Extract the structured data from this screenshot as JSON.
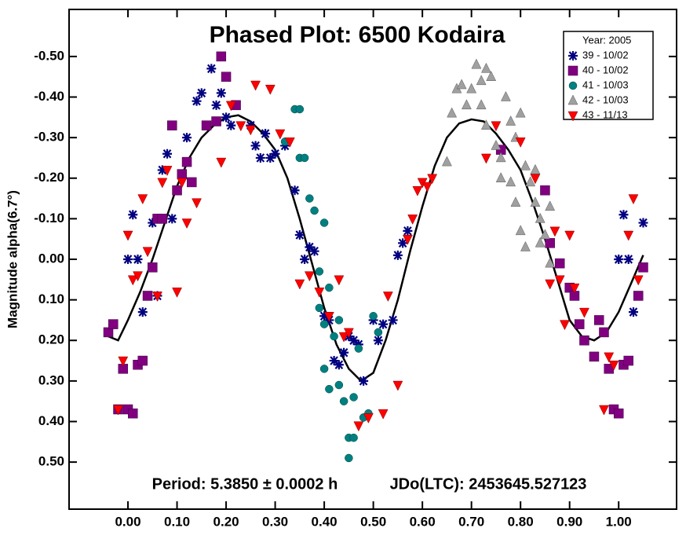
{
  "chart_data": {
    "type": "scatter",
    "title": "Phased Plot: 6500 Kodaira",
    "y_label": "Magnitude alpha(6.7°)",
    "annotations": [
      "Period: 5.3850 ± 0.0002 h",
      "JDo(LTC): 2453645.527123"
    ],
    "legend_title": "Year: 2005",
    "legend": "upper right",
    "y_inverted": true,
    "xlim": [
      -0.12,
      1.118
    ],
    "ylim": [
      -0.616,
      0.616
    ],
    "xticks": [
      {
        "value": 0,
        "label": "0.00"
      },
      {
        "value": 0.1,
        "label": "0.10"
      },
      {
        "value": 0.2,
        "label": "0.20"
      },
      {
        "value": 0.3,
        "label": "0.30"
      },
      {
        "value": 0.4,
        "label": "0.40"
      },
      {
        "value": 0.5,
        "label": "0.50"
      },
      {
        "value": 0.6,
        "label": "0.60"
      },
      {
        "value": 0.7,
        "label": "0.70"
      },
      {
        "value": 0.8,
        "label": "0.80"
      },
      {
        "value": 0.9,
        "label": "0.90"
      },
      {
        "value": 1,
        "label": "1.00"
      }
    ],
    "yticks": [
      {
        "value": -0.5,
        "label": "-0.50"
      },
      {
        "value": -0.4,
        "label": "-0.40"
      },
      {
        "value": -0.3,
        "label": "-0.30"
      },
      {
        "value": -0.2,
        "label": "-0.20"
      },
      {
        "value": -0.1,
        "label": "-0.10"
      },
      {
        "value": 0,
        "label": "0.00"
      },
      {
        "value": 0.1,
        "label": "0.10"
      },
      {
        "value": 0.2,
        "label": "0.20"
      },
      {
        "value": 0.3,
        "label": "0.30"
      },
      {
        "value": 0.4,
        "label": "0.40"
      },
      {
        "value": 0.5,
        "label": "0.50"
      }
    ],
    "series": [
      {
        "name": "39 - 10/02",
        "color": "#000080",
        "marker": "asterisk",
        "x": [
          0.0,
          0.01,
          0.02,
          0.03,
          0.05,
          0.06,
          0.07,
          0.08,
          0.09,
          0.12,
          0.14,
          0.15,
          0.17,
          0.18,
          0.19,
          0.2,
          0.21,
          0.25,
          0.26,
          0.27,
          0.28,
          0.29,
          0.3,
          0.32,
          0.34,
          0.35,
          0.36,
          0.37,
          0.38,
          0.4,
          0.41,
          0.42,
          0.43,
          0.44,
          0.45,
          0.46,
          0.47,
          0.48,
          0.5,
          0.51,
          0.52,
          0.54,
          0.55,
          0.56,
          0.57,
          1.0,
          1.01,
          1.02,
          1.03,
          1.05
        ],
        "values": [
          0.0,
          -0.11,
          0.0,
          0.13,
          -0.09,
          0.09,
          -0.22,
          -0.26,
          -0.1,
          -0.3,
          -0.39,
          -0.41,
          -0.47,
          -0.38,
          -0.41,
          -0.35,
          -0.33,
          -0.33,
          -0.28,
          -0.25,
          -0.31,
          -0.25,
          -0.26,
          -0.28,
          -0.17,
          -0.06,
          0.0,
          -0.03,
          -0.02,
          0.14,
          0.15,
          0.25,
          0.26,
          0.23,
          0.19,
          0.2,
          0.21,
          0.3,
          0.15,
          0.2,
          0.16,
          0.15,
          -0.01,
          -0.04,
          -0.07,
          0.0,
          -0.11,
          0.0,
          0.13,
          -0.09
        ]
      },
      {
        "name": "40 - 10/02",
        "color": "#800080",
        "marker": "square",
        "x": [
          -0.04,
          -0.03,
          -0.02,
          -0.01,
          0.0,
          0.01,
          0.02,
          0.03,
          0.04,
          0.05,
          0.06,
          0.07,
          0.09,
          0.1,
          0.11,
          0.12,
          0.13,
          0.16,
          0.18,
          0.19,
          0.2,
          0.22,
          0.76,
          0.85,
          0.86,
          0.88,
          0.9,
          0.91,
          0.92,
          0.93,
          0.95,
          0.96,
          0.97,
          0.98,
          0.99,
          1.0,
          1.01,
          1.02,
          1.04,
          1.05
        ],
        "values": [
          0.18,
          0.16,
          0.37,
          0.27,
          0.37,
          0.38,
          0.26,
          0.25,
          0.09,
          0.02,
          -0.1,
          -0.1,
          -0.33,
          -0.17,
          -0.21,
          -0.24,
          -0.19,
          -0.33,
          -0.34,
          -0.5,
          -0.45,
          -0.38,
          -0.27,
          -0.17,
          -0.04,
          0.01,
          0.07,
          0.09,
          0.16,
          0.2,
          0.24,
          0.15,
          0.18,
          0.27,
          0.37,
          0.38,
          0.26,
          0.25,
          0.09,
          0.02
        ]
      },
      {
        "name": "41 - 10/03",
        "color": "#008080",
        "marker": "circle",
        "x": [
          0.32,
          0.34,
          0.35,
          0.35,
          0.36,
          0.37,
          0.38,
          0.39,
          0.39,
          0.4,
          0.4,
          0.41,
          0.42,
          0.43,
          0.44,
          0.45,
          0.45,
          0.46,
          0.46,
          0.47,
          0.48,
          0.49,
          0.5,
          0.51,
          0.4,
          0.41,
          0.43
        ],
        "values": [
          -0.29,
          -0.37,
          -0.37,
          -0.25,
          -0.25,
          -0.15,
          -0.12,
          0.03,
          0.12,
          0.27,
          0.16,
          0.32,
          0.19,
          0.31,
          0.35,
          0.44,
          0.49,
          0.44,
          0.34,
          0.22,
          0.39,
          0.38,
          0.14,
          0.18,
          -0.09,
          0.07,
          0.15
        ]
      },
      {
        "name": "42 - 10/03",
        "color": "#a0a0a0",
        "marker": "triangle-up",
        "x": [
          0.65,
          0.66,
          0.67,
          0.68,
          0.69,
          0.7,
          0.71,
          0.72,
          0.73,
          0.74,
          0.72,
          0.73,
          0.75,
          0.76,
          0.77,
          0.78,
          0.79,
          0.8,
          0.81,
          0.82,
          0.83,
          0.84,
          0.85,
          0.86,
          0.8,
          0.79,
          0.83,
          0.86,
          0.84,
          0.78,
          0.76,
          0.81
        ],
        "values": [
          -0.24,
          -0.36,
          -0.42,
          -0.43,
          -0.38,
          -0.42,
          -0.48,
          -0.44,
          -0.47,
          -0.45,
          -0.38,
          -0.33,
          -0.28,
          -0.25,
          -0.4,
          -0.34,
          -0.3,
          -0.36,
          -0.23,
          -0.19,
          -0.14,
          -0.1,
          -0.06,
          -0.13,
          -0.07,
          -0.14,
          -0.22,
          0.01,
          -0.04,
          -0.19,
          -0.2,
          -0.03
        ]
      },
      {
        "name": "43 - 11/13",
        "color": "#ff0000",
        "marker": "triangle-down",
        "x": [
          -0.02,
          -0.01,
          0.0,
          0.01,
          0.02,
          0.03,
          0.04,
          0.06,
          0.07,
          0.08,
          0.1,
          0.11,
          0.12,
          0.14,
          0.19,
          0.21,
          0.23,
          0.25,
          0.26,
          0.29,
          0.31,
          0.33,
          0.35,
          0.37,
          0.39,
          0.41,
          0.43,
          0.44,
          0.45,
          0.47,
          0.49,
          0.52,
          0.53,
          0.55,
          0.57,
          0.58,
          0.59,
          0.6,
          0.61,
          0.62,
          0.73,
          0.75,
          0.8,
          0.83,
          0.86,
          0.87,
          0.88,
          0.89,
          0.9,
          0.91,
          0.93,
          0.97,
          0.98,
          0.99,
          1.02,
          1.03,
          1.04
        ],
        "values": [
          0.37,
          0.25,
          -0.06,
          0.05,
          0.04,
          -0.15,
          -0.02,
          0.09,
          -0.19,
          -0.22,
          0.08,
          -0.19,
          -0.09,
          -0.14,
          -0.24,
          -0.38,
          -0.33,
          -0.32,
          -0.43,
          -0.42,
          -0.31,
          -0.29,
          0.06,
          0.04,
          0.08,
          0.14,
          0.05,
          0.19,
          0.18,
          0.41,
          0.39,
          0.38,
          0.09,
          0.31,
          -0.05,
          -0.1,
          -0.17,
          -0.19,
          -0.18,
          -0.2,
          -0.25,
          -0.33,
          -0.29,
          -0.2,
          0.06,
          -0.07,
          0.05,
          0.16,
          -0.06,
          0.07,
          0.13,
          0.37,
          0.24,
          0.26,
          -0.06,
          -0.15,
          0.05
        ]
      }
    ],
    "fit": {
      "color": "#000000",
      "x": [
        -0.04,
        -0.02,
        0.0,
        0.025,
        0.05,
        0.075,
        0.1,
        0.125,
        0.15,
        0.175,
        0.2,
        0.225,
        0.25,
        0.275,
        0.3,
        0.325,
        0.35,
        0.375,
        0.4,
        0.425,
        0.45,
        0.475,
        0.5,
        0.525,
        0.55,
        0.575,
        0.6,
        0.625,
        0.65,
        0.675,
        0.7,
        0.725,
        0.75,
        0.775,
        0.8,
        0.825,
        0.85,
        0.875,
        0.9,
        0.925,
        0.95,
        0.975,
        1.0,
        1.025,
        1.05
      ],
      "values": [
        0.19,
        0.2,
        0.15,
        0.08,
        0.0,
        -0.09,
        -0.18,
        -0.25,
        -0.3,
        -0.33,
        -0.35,
        -0.355,
        -0.34,
        -0.31,
        -0.27,
        -0.2,
        -0.1,
        0.01,
        0.12,
        0.21,
        0.27,
        0.3,
        0.28,
        0.2,
        0.1,
        -0.02,
        -0.13,
        -0.23,
        -0.3,
        -0.335,
        -0.345,
        -0.34,
        -0.31,
        -0.27,
        -0.22,
        -0.14,
        -0.05,
        0.05,
        0.15,
        0.19,
        0.2,
        0.18,
        0.13,
        0.06,
        -0.01
      ]
    }
  }
}
